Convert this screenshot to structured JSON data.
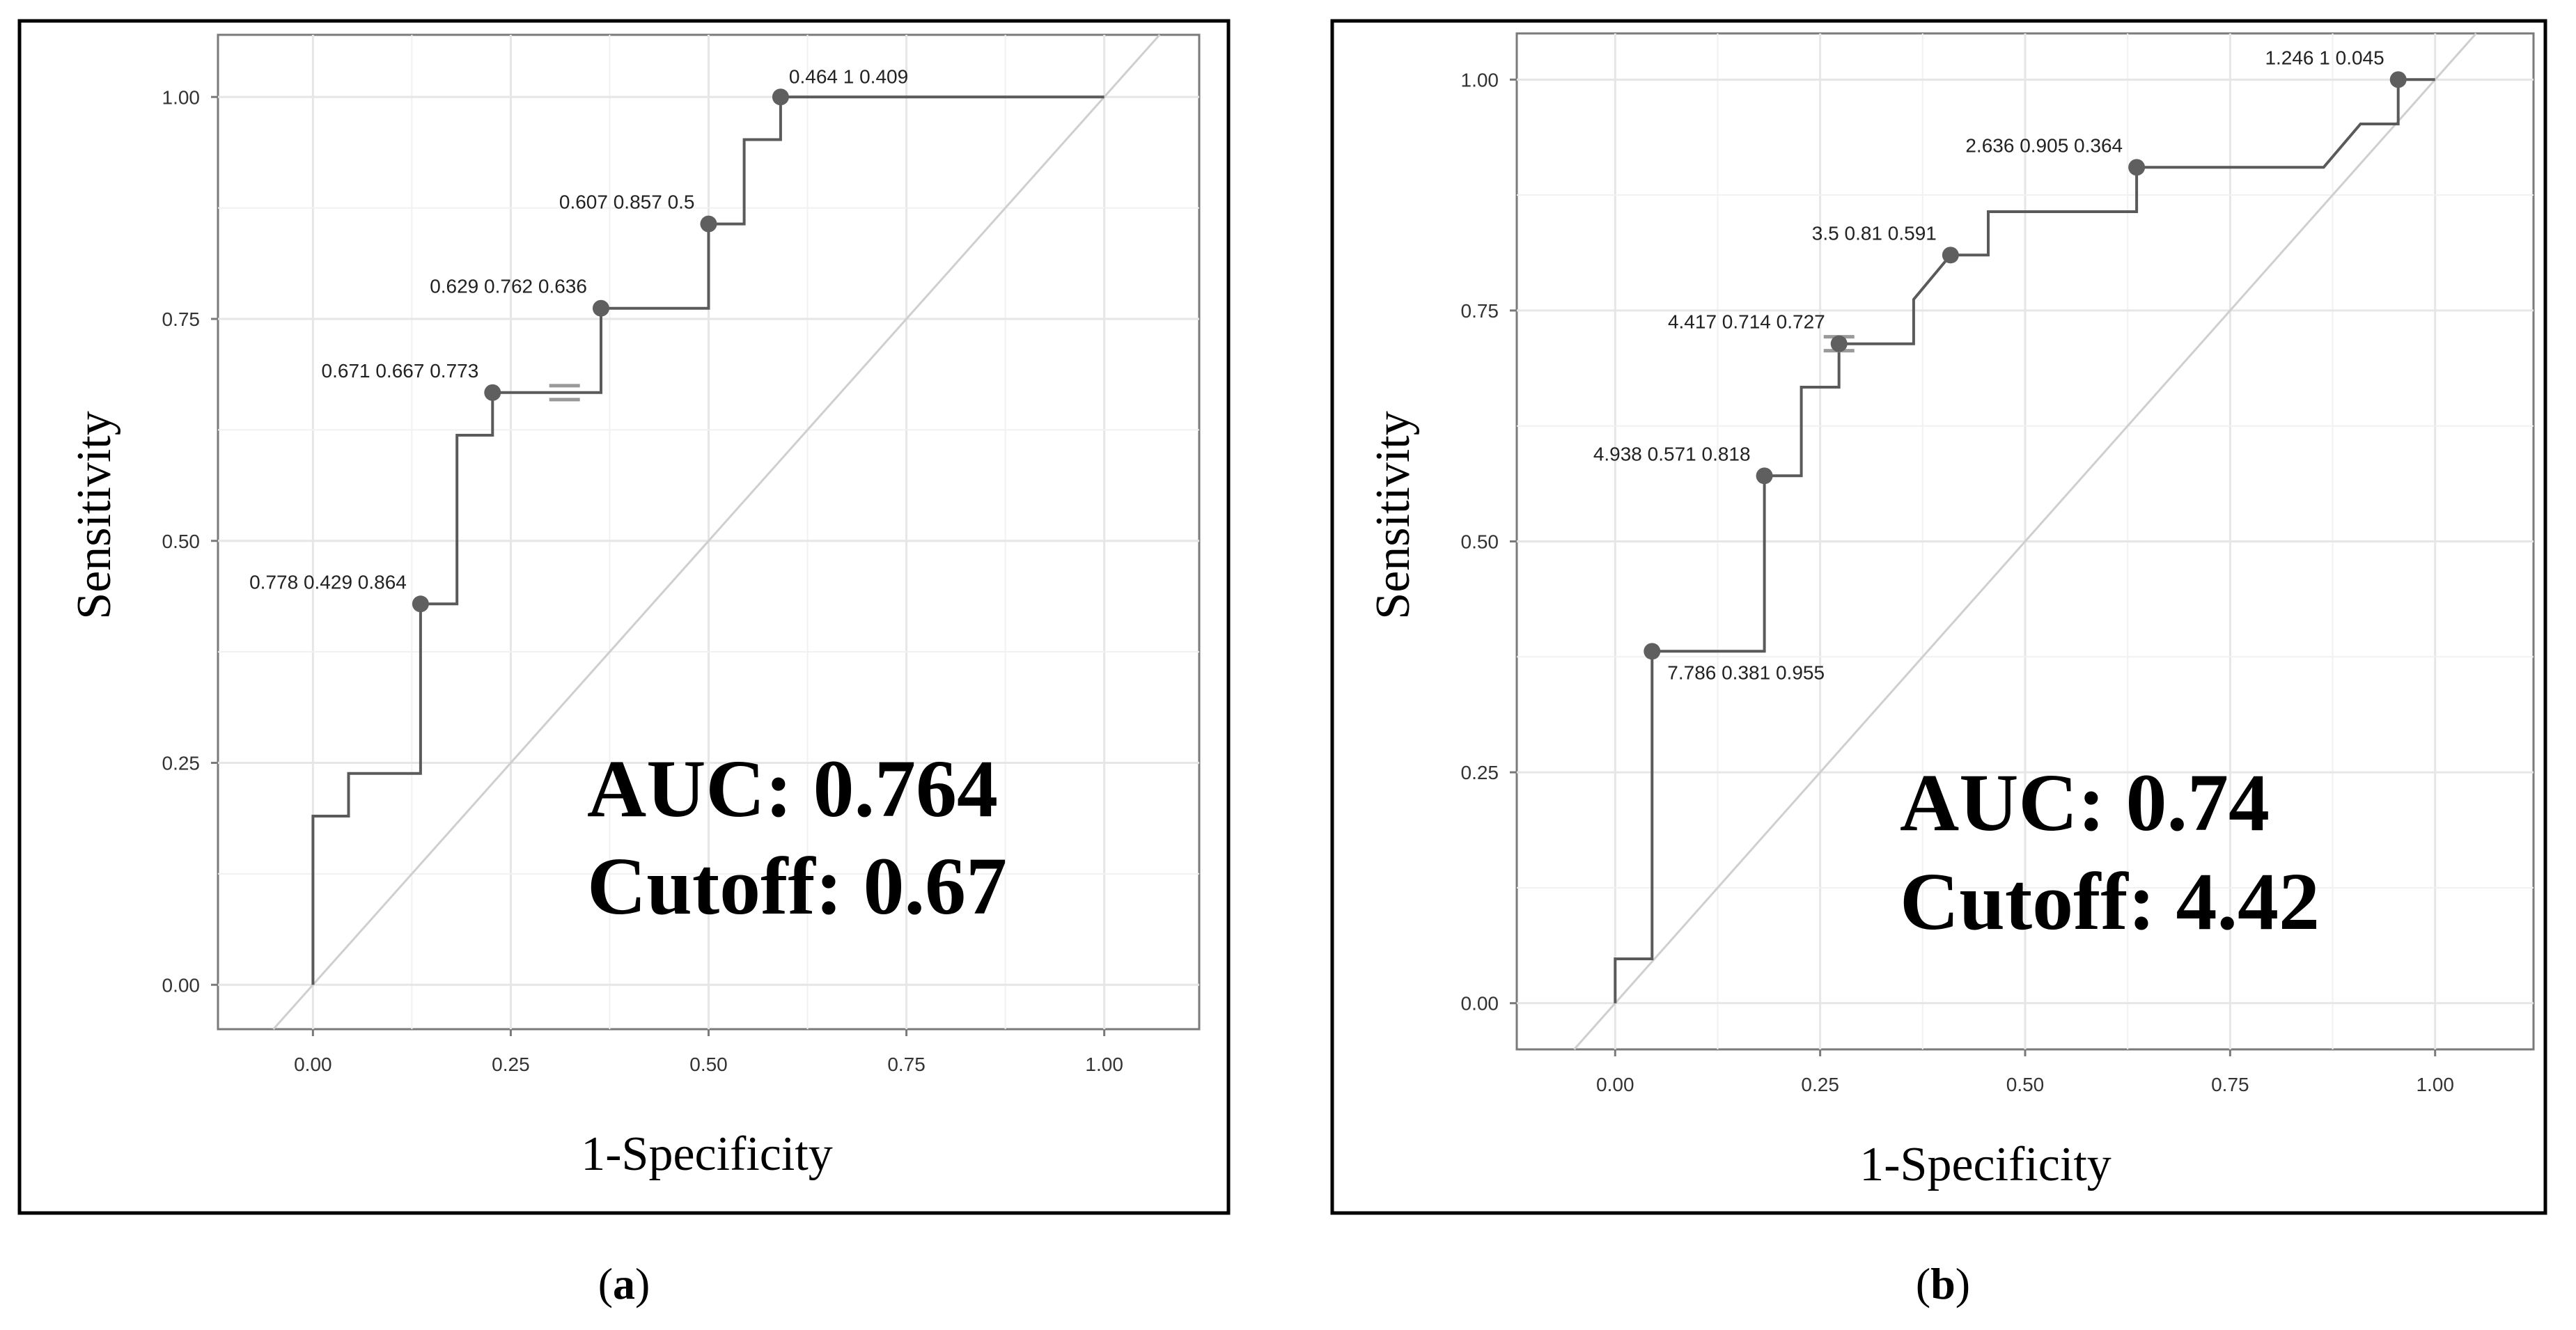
{
  "chart_data": [
    {
      "type": "line",
      "panel_caption": "a",
      "xlabel": "1-Specificity",
      "ylabel": "Sensitivity",
      "xlim": [
        -0.12,
        1.12
      ],
      "ylim": [
        -0.05,
        1.07
      ],
      "x_ticks": [
        "0.00",
        "0.25",
        "0.50",
        "0.75",
        "1.00"
      ],
      "y_ticks": [
        "0.00",
        "0.25",
        "0.50",
        "0.75",
        "1.00"
      ],
      "grid": true,
      "diagonal_reference": true,
      "roc_steps": [
        [
          0,
          0
        ],
        [
          0,
          0.19
        ],
        [
          0.045,
          0.19
        ],
        [
          0.045,
          0.238
        ],
        [
          0.136,
          0.238
        ],
        [
          0.136,
          0.429
        ],
        [
          0.182,
          0.429
        ],
        [
          0.182,
          0.619
        ],
        [
          0.227,
          0.619
        ],
        [
          0.227,
          0.667
        ],
        [
          0.364,
          0.667
        ],
        [
          0.364,
          0.762
        ],
        [
          0.5,
          0.762
        ],
        [
          0.5,
          0.857
        ],
        [
          0.545,
          0.857
        ],
        [
          0.545,
          0.952
        ],
        [
          0.591,
          0.952
        ],
        [
          0.591,
          1.0
        ],
        [
          1.0,
          1.0
        ]
      ],
      "labeled_points": [
        {
          "x": 0.136,
          "y": 0.429,
          "label": "0.778 0.429 0.864",
          "pos": "left"
        },
        {
          "x": 0.227,
          "y": 0.667,
          "label": "0.671 0.667 0.773",
          "pos": "left"
        },
        {
          "x": 0.364,
          "y": 0.762,
          "label": "0.629 0.762 0.636",
          "pos": "left"
        },
        {
          "x": 0.5,
          "y": 0.857,
          "label": "0.607 0.857 0.5",
          "pos": "left"
        },
        {
          "x": 0.591,
          "y": 1.0,
          "label": "0.464 1 0.409",
          "pos": "right"
        }
      ],
      "cutoff_marker": {
        "x": 0.318,
        "y": 0.667
      },
      "annotation_lines": [
        "AUC: 0.764",
        "Cutoff: 0.67"
      ]
    },
    {
      "type": "line",
      "panel_caption": "b",
      "xlabel": "1-Specificity",
      "ylabel": "Sensitivity",
      "xlim": [
        -0.12,
        1.12
      ],
      "ylim": [
        -0.05,
        1.05
      ],
      "x_ticks": [
        "0.00",
        "0.25",
        "0.50",
        "0.75",
        "1.00"
      ],
      "y_ticks": [
        "0.00",
        "0.25",
        "0.50",
        "0.75",
        "1.00"
      ],
      "grid": true,
      "diagonal_reference": true,
      "roc_steps": [
        [
          0,
          0
        ],
        [
          0,
          0.048
        ],
        [
          0.045,
          0.048
        ],
        [
          0.045,
          0.381
        ],
        [
          0.182,
          0.381
        ],
        [
          0.182,
          0.571
        ],
        [
          0.227,
          0.571
        ],
        [
          0.227,
          0.667
        ],
        [
          0.273,
          0.667
        ],
        [
          0.273,
          0.714
        ],
        [
          0.364,
          0.714
        ],
        [
          0.364,
          0.762
        ],
        [
          0.409,
          0.81
        ],
        [
          0.455,
          0.81
        ],
        [
          0.455,
          0.857
        ],
        [
          0.636,
          0.857
        ],
        [
          0.636,
          0.905
        ],
        [
          0.864,
          0.905
        ],
        [
          0.909,
          0.952
        ],
        [
          0.955,
          0.952
        ],
        [
          0.955,
          1.0
        ],
        [
          1.0,
          1.0
        ]
      ],
      "labeled_points": [
        {
          "x": 0.045,
          "y": 0.381,
          "label": "7.786 0.381 0.955",
          "pos": "below-right"
        },
        {
          "x": 0.182,
          "y": 0.571,
          "label": "4.938 0.571 0.818",
          "pos": "left"
        },
        {
          "x": 0.273,
          "y": 0.714,
          "label": "4.417 0.714 0.727",
          "pos": "left"
        },
        {
          "x": 0.409,
          "y": 0.81,
          "label": "3.5 0.81 0.591",
          "pos": "left"
        },
        {
          "x": 0.636,
          "y": 0.905,
          "label": "2.636 0.905 0.364",
          "pos": "left"
        },
        {
          "x": 0.955,
          "y": 1.0,
          "label": "1.246 1 0.045",
          "pos": "left"
        }
      ],
      "cutoff_marker": {
        "x": 0.273,
        "y": 0.714
      },
      "annotation_lines": [
        "AUC: 0.74",
        "Cutoff: 4.42"
      ]
    }
  ]
}
